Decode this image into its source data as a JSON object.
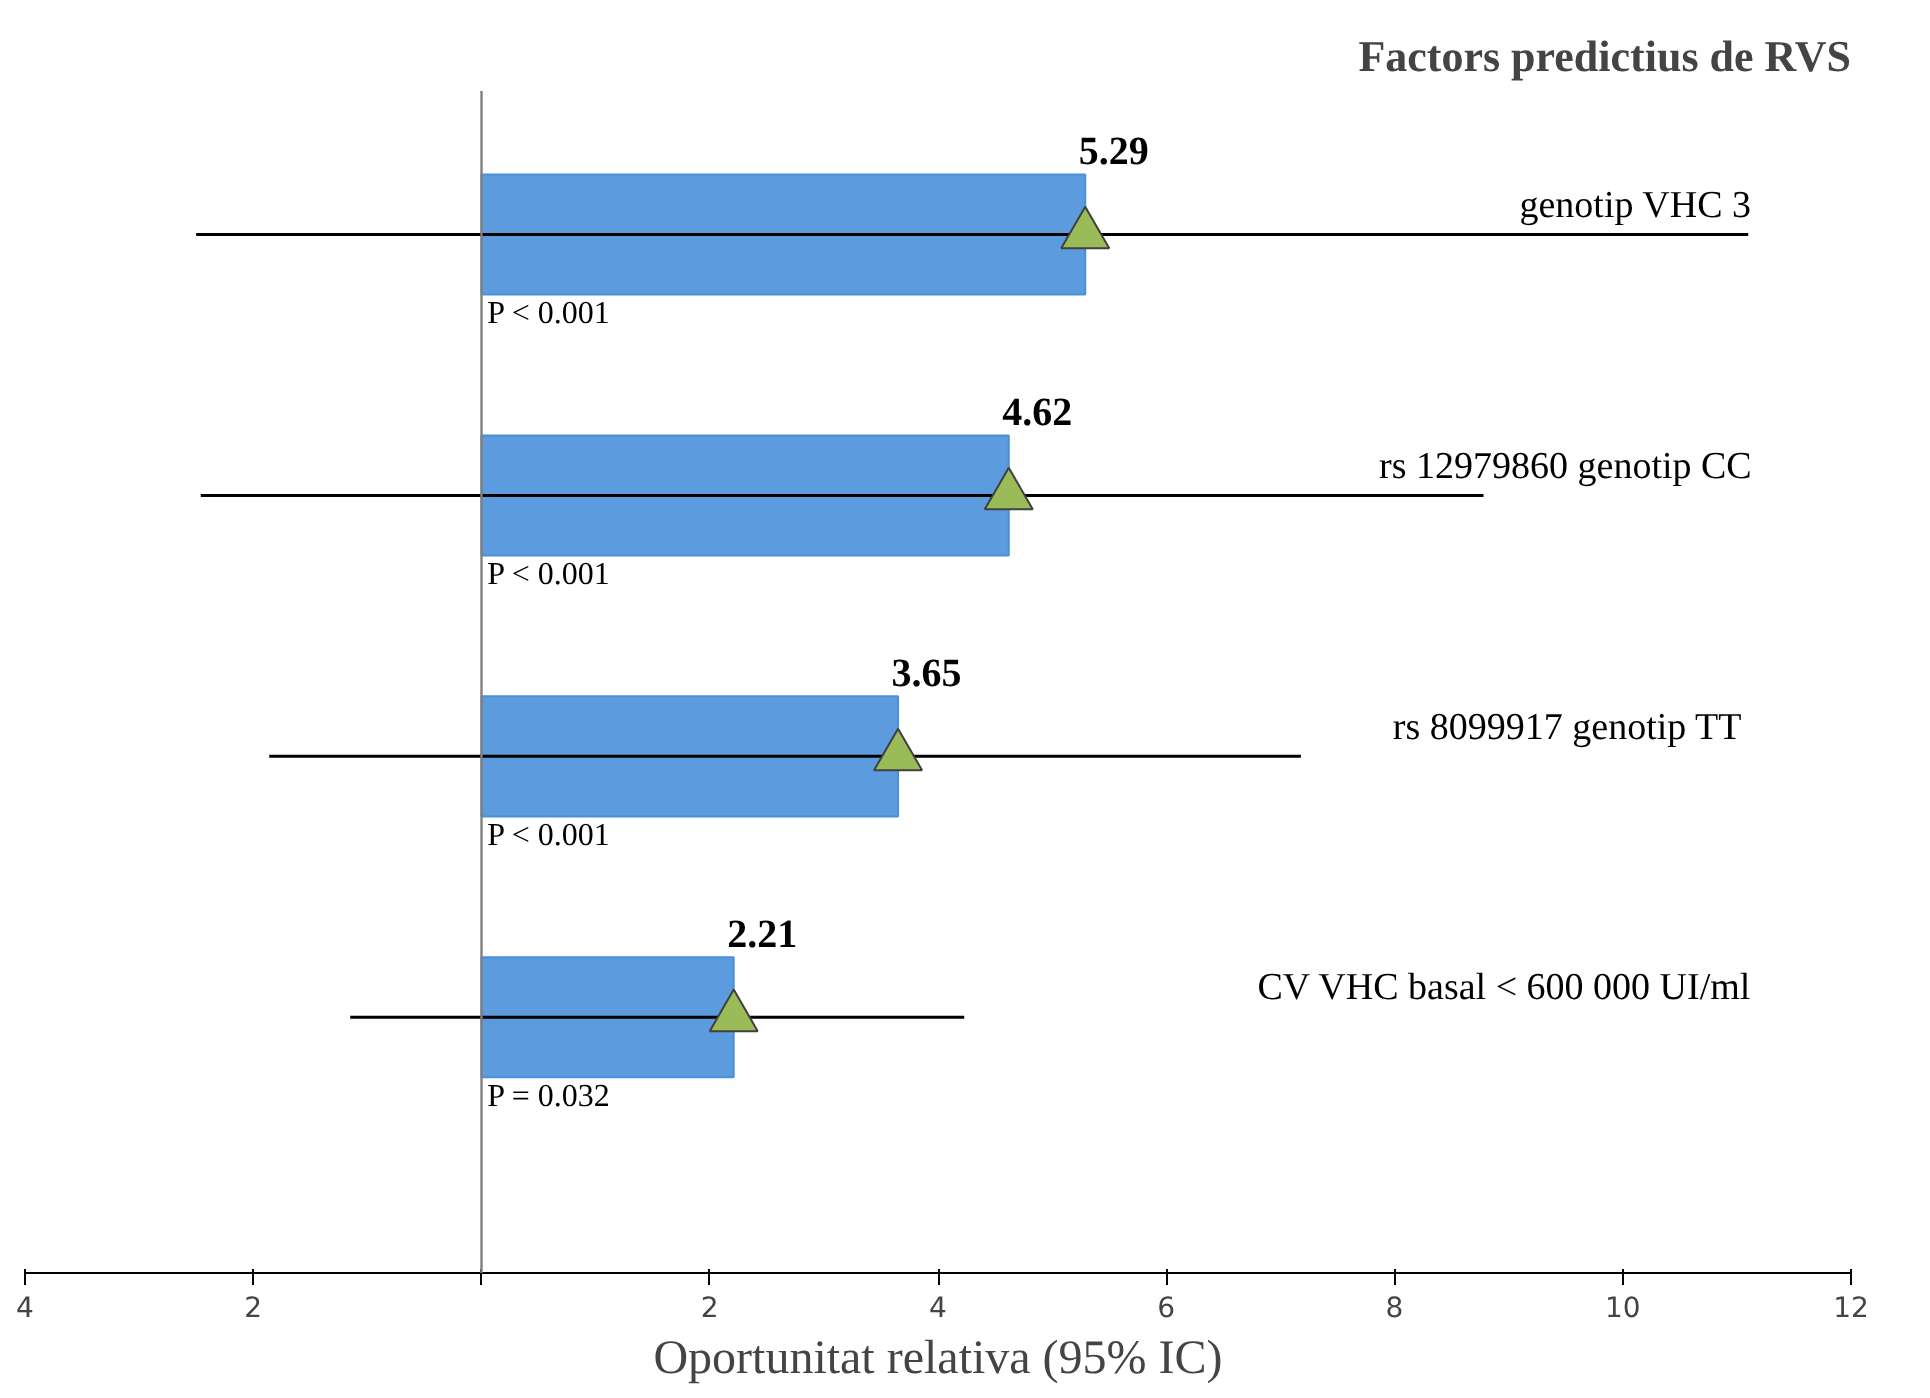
{
  "chart_data": {
    "type": "bar",
    "orientation": "horizontal",
    "title": "Factors predictius de RVS",
    "xlabel": "Oportunitat relativa (95% IC)",
    "categories": [
      "genotip VHC 3",
      "rs 12979860 genotip CC",
      "rs 8099917  genotip TT",
      "CV VHC basal < 600 000 UI/ml"
    ],
    "series": [
      {
        "color": "#4a90d9",
        "values": [
          5.29,
          4.62,
          3.65,
          2.21
        ],
        "value_labels": [
          "5.29",
          "4.62",
          "3.65",
          "2.21"
        ],
        "errors": [
          [
            -2.5,
            11.1
          ],
          [
            -2.46,
            8.78
          ],
          [
            -1.86,
            7.18
          ],
          [
            -1.15,
            4.23
          ]
        ]
      },
      {
        "type": "scatter",
        "marker": "triangle",
        "color": "#9bbb59",
        "values": [
          5.29,
          4.62,
          3.65,
          2.21
        ]
      }
    ],
    "xlim": [
      -4,
      12
    ],
    "xticks": [
      {
        "value": -4,
        "label": "4"
      },
      {
        "value": -2,
        "label": "2"
      },
      {
        "value": 0,
        "label": null
      },
      2,
      4,
      6,
      8,
      10,
      12
    ],
    "ref_lines": [
      {
        "axis": "x",
        "value": 0,
        "color": "#808080"
      }
    ],
    "annotations": [
      "P < 0.001",
      "P < 0.001",
      "P < 0.001",
      "P = 0.032"
    ],
    "grid": false
  }
}
